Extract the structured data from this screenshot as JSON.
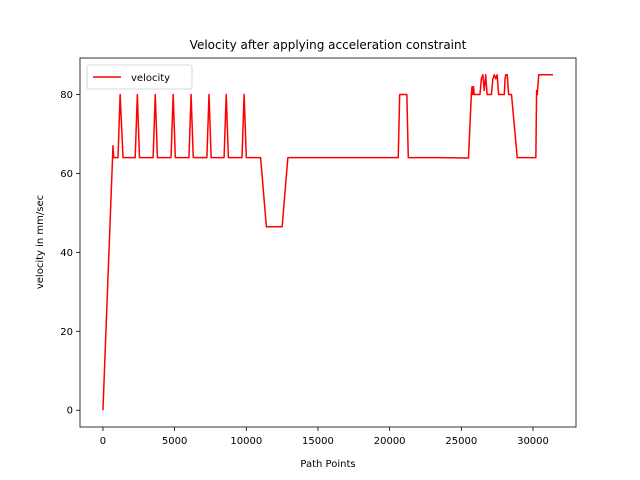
{
  "chart_data": {
    "type": "line",
    "title": "Velocity after applying acceleration constraint",
    "xlabel": "Path Points",
    "ylabel": "velocity in mm/sec",
    "xlim": [
      -1600,
      33000
    ],
    "ylim": [
      -4.25,
      89.25
    ],
    "xticks": [
      0,
      5000,
      10000,
      15000,
      20000,
      25000,
      30000
    ],
    "yticks": [
      0,
      20,
      40,
      60,
      80
    ],
    "grid": false,
    "legend": {
      "position": "top-left"
    },
    "series": [
      {
        "name": "velocity",
        "color": "#ff0000",
        "x": [
          0,
          650,
          700,
          750,
          800,
          1050,
          1200,
          1400,
          2250,
          2400,
          2550,
          3500,
          3650,
          3800,
          4750,
          4900,
          5050,
          6000,
          6150,
          6300,
          7250,
          7400,
          7550,
          8450,
          8600,
          8750,
          9700,
          9850,
          10000,
          10900,
          11000,
          11400,
          12500,
          12900,
          13200,
          20600,
          20700,
          21200,
          21300,
          23300,
          25500,
          25700,
          25750,
          25800,
          25850,
          25900,
          25950,
          26000,
          26300,
          26400,
          26500,
          26600,
          26700,
          26800,
          26900,
          27100,
          27200,
          27300,
          27400,
          27500,
          27600,
          27700,
          28000,
          28050,
          28100,
          28200,
          28300,
          28400,
          28500,
          28900,
          29000,
          30200,
          30250,
          30300,
          30400,
          30500,
          30700,
          31000,
          31400
        ],
        "y": [
          0,
          62,
          67,
          64,
          64,
          64,
          80,
          64,
          64,
          80,
          64,
          64,
          80,
          64,
          64,
          80,
          64,
          64,
          80,
          64,
          64,
          80,
          64,
          64,
          80,
          64,
          64,
          80,
          64,
          64,
          64,
          46.5,
          46.5,
          64,
          64,
          64,
          80,
          80,
          64,
          64,
          63.9,
          80,
          82,
          80,
          82,
          80,
          80,
          80,
          80,
          84,
          85,
          81,
          85,
          80,
          80,
          80,
          84,
          85,
          84,
          85,
          80,
          80,
          80,
          84,
          85,
          85,
          80,
          80,
          80,
          64,
          64,
          64,
          81,
          80,
          85,
          85,
          85,
          85,
          85
        ]
      }
    ]
  }
}
